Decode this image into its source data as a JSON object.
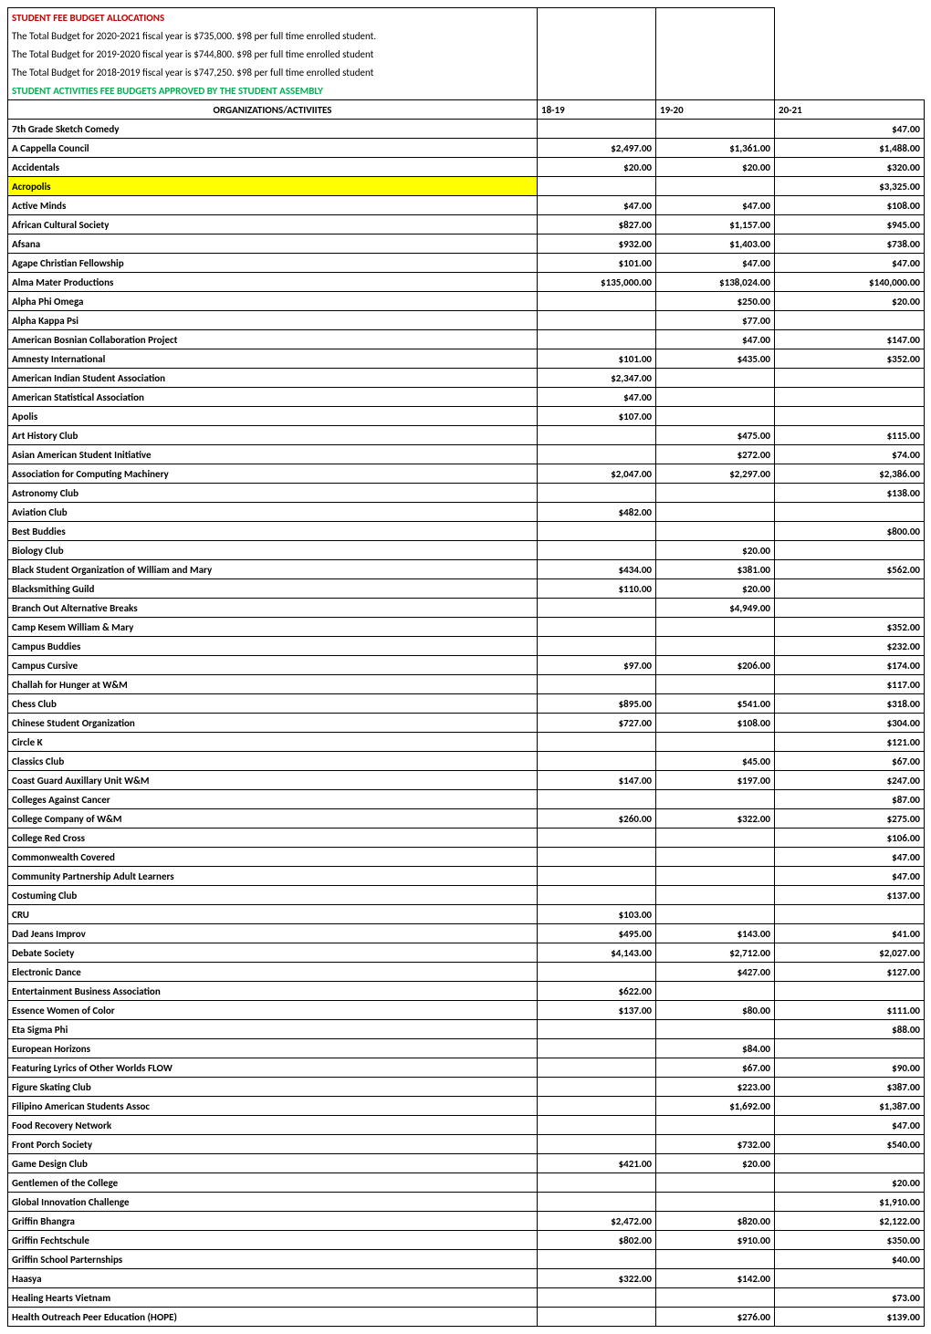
{
  "header": {
    "title": "STUDENT FEE BUDGET ALLOCATIONS",
    "line1": "The Total Budget for 2020-2021 fiscal year is $735,000. $98 per full time enrolled student.",
    "line2": "The Total Budget for 2019-2020 fiscal year is $744,800. $98 per full time enrolled student",
    "line3": "The Total Budget for 2018-2019 fiscal year is $747,250. $98 per full time enrolled student",
    "green_line": "STUDENT ACTIVITIES FEE BUDGETS APPROVED BY THE STUDENT ASSEMBLY"
  },
  "columns": {
    "org": "ORGANIZATIONS/ACTIVIITES",
    "y1": "18-19",
    "y2": "19-20",
    "y3": "20-21"
  },
  "colors": {
    "red": "#c00000",
    "green": "#00b050",
    "yellow": "#ffff00",
    "border": "#000000",
    "bg": "#ffffff"
  },
  "rows": [
    {
      "name": "7th Grade Sketch Comedy",
      "y1": "",
      "y2": "",
      "y3": "$47.00"
    },
    {
      "name": "A Cappella Council",
      "y1": "$2,497.00",
      "y2": "$1,361.00",
      "y3": "$1,488.00"
    },
    {
      "name": "Accidentals",
      "y1": "$20.00",
      "y2": "$20.00",
      "y3": "$320.00"
    },
    {
      "name": "Acropolis",
      "y1": "",
      "y2": "",
      "y3": "$3,325.00",
      "highlight": true
    },
    {
      "name": "Active Minds",
      "y1": "$47.00",
      "y2": "$47.00",
      "y3": "$108.00"
    },
    {
      "name": "African Cultural Society",
      "y1": "$827.00",
      "y2": "$1,157.00",
      "y3": "$945.00"
    },
    {
      "name": "Afsana",
      "y1": "$932.00",
      "y2": "$1,403.00",
      "y3": "$738.00"
    },
    {
      "name": "Agape Christian Fellowship",
      "y1": "$101.00",
      "y2": "$47.00",
      "y3": "$47.00"
    },
    {
      "name": "Alma Mater Productions",
      "y1": "$135,000.00",
      "y2": "$138,024.00",
      "y3": "$140,000.00"
    },
    {
      "name": "Alpha Phi Omega",
      "y1": "",
      "y2": "$250.00",
      "y3": "$20.00"
    },
    {
      "name": "Alpha Kappa Psi",
      "y1": "",
      "y2": "$77.00",
      "y3": ""
    },
    {
      "name": "American Bosnian Collaboration Project",
      "y1": "",
      "y2": "$47.00",
      "y3": "$147.00"
    },
    {
      "name": "Amnesty International",
      "y1": "$101.00",
      "y2": "$435.00",
      "y3": "$352.00"
    },
    {
      "name": "American Indian Student Association",
      "y1": "$2,347.00",
      "y2": "",
      "y3": ""
    },
    {
      "name": "American Statistical Association",
      "y1": "$47.00",
      "y2": "",
      "y3": ""
    },
    {
      "name": "Apolis",
      "y1": "$107.00",
      "y2": "",
      "y3": ""
    },
    {
      "name": "Art History Club",
      "y1": "",
      "y2": "$475.00",
      "y3": "$115.00"
    },
    {
      "name": "Asian American Student Initiative",
      "y1": "",
      "y2": "$272.00",
      "y3": "$74.00"
    },
    {
      "name": "Association for Computing Machinery",
      "y1": "$2,047.00",
      "y2": "$2,297.00",
      "y3": "$2,386.00"
    },
    {
      "name": "Astronomy Club",
      "y1": "",
      "y2": "",
      "y3": "$138.00"
    },
    {
      "name": "Aviation Club",
      "y1": "$482.00",
      "y2": "",
      "y3": ""
    },
    {
      "name": "Best Buddies",
      "y1": "",
      "y2": "",
      "y3": "$800.00"
    },
    {
      "name": "Biology Club",
      "y1": "",
      "y2": "$20.00",
      "y3": ""
    },
    {
      "name": "Black Student Organization of William and Mary",
      "y1": "$434.00",
      "y2": "$381.00",
      "y3": "$562.00"
    },
    {
      "name": "Blacksmithing Guild",
      "y1": "$110.00",
      "y2": "$20.00",
      "y3": ""
    },
    {
      "name": "Branch Out Alternative Breaks",
      "y1": "",
      "y2": "$4,949.00",
      "y3": ""
    },
    {
      "name": "Camp Kesem William & Mary",
      "y1": "",
      "y2": "",
      "y3": "$352.00"
    },
    {
      "name": "Campus Buddies",
      "y1": "",
      "y2": "",
      "y3": "$232.00"
    },
    {
      "name": "Campus Cursive",
      "y1": "$97.00",
      "y2": "$206.00",
      "y3": "$174.00"
    },
    {
      "name": "Challah for Hunger at W&M",
      "y1": "",
      "y2": "",
      "y3": "$117.00"
    },
    {
      "name": "Chess Club",
      "y1": "$895.00",
      "y2": "$541.00",
      "y3": "$318.00"
    },
    {
      "name": "Chinese Student Organization",
      "y1": "$727.00",
      "y2": "$108.00",
      "y3": "$304.00"
    },
    {
      "name": "Circle K",
      "y1": "",
      "y2": "",
      "y3": "$121.00"
    },
    {
      "name": "Classics Club",
      "y1": "",
      "y2": "$45.00",
      "y3": "$67.00"
    },
    {
      "name": "Coast Guard Auxillary Unit W&M",
      "y1": "$147.00",
      "y2": "$197.00",
      "y3": "$247.00"
    },
    {
      "name": "Colleges Against Cancer",
      "y1": "",
      "y2": "",
      "y3": "$87.00"
    },
    {
      "name": "College Company of W&M",
      "y1": "$260.00",
      "y2": "$322.00",
      "y3": "$275.00"
    },
    {
      "name": "College Red Cross",
      "y1": "",
      "y2": "",
      "y3": "$106.00"
    },
    {
      "name": "Commonwealth Covered",
      "y1": "",
      "y2": "",
      "y3": "$47.00"
    },
    {
      "name": "Community Partnership Adult Learners",
      "y1": "",
      "y2": "",
      "y3": "$47.00"
    },
    {
      "name": "Costuming Club",
      "y1": "",
      "y2": "",
      "y3": "$137.00"
    },
    {
      "name": "CRU",
      "y1": "$103.00",
      "y2": "",
      "y3": ""
    },
    {
      "name": "Dad Jeans Improv",
      "y1": "$495.00",
      "y2": "$143.00",
      "y3": "$41.00"
    },
    {
      "name": "Debate Society",
      "y1": "$4,143.00",
      "y2": "$2,712.00",
      "y3": "$2,027.00"
    },
    {
      "name": "Electronic Dance",
      "y1": "",
      "y2": "$427.00",
      "y3": "$127.00"
    },
    {
      "name": "Entertainment Business Association",
      "y1": "$622.00",
      "y2": "",
      "y3": ""
    },
    {
      "name": "Essence Women of Color",
      "y1": "$137.00",
      "y2": "$80.00",
      "y3": "$111.00"
    },
    {
      "name": "Eta Sigma Phi",
      "y1": "",
      "y2": "",
      "y3": "$88.00"
    },
    {
      "name": "European Horizons",
      "y1": "",
      "y2": "$84.00",
      "y3": ""
    },
    {
      "name": "Featuring Lyrics of Other Worlds FLOW",
      "y1": "",
      "y2": "$67.00",
      "y3": "$90.00"
    },
    {
      "name": "Figure Skating Club",
      "y1": "",
      "y2": "$223.00",
      "y3": "$387.00"
    },
    {
      "name": "Filipino American Students Assoc",
      "y1": "",
      "y2": "$1,692.00",
      "y3": "$1,387.00"
    },
    {
      "name": "Food Recovery Network",
      "y1": "",
      "y2": "",
      "y3": "$47.00"
    },
    {
      "name": "Front Porch Society",
      "y1": "",
      "y2": "$732.00",
      "y3": "$540.00"
    },
    {
      "name": "Game Design Club",
      "y1": "$421.00",
      "y2": "$20.00",
      "y3": ""
    },
    {
      "name": "Gentlemen of the College",
      "y1": "",
      "y2": "",
      "y3": "$20.00"
    },
    {
      "name": "Global Innovation Challenge",
      "y1": "",
      "y2": "",
      "y3": "$1,910.00"
    },
    {
      "name": "Griffin Bhangra",
      "y1": "$2,472.00",
      "y2": "$820.00",
      "y3": "$2,122.00"
    },
    {
      "name": "Griffin Fechtschule",
      "y1": "$802.00",
      "y2": "$910.00",
      "y3": "$350.00"
    },
    {
      "name": "Griffin School Parternships",
      "y1": "",
      "y2": "",
      "y3": "$40.00"
    },
    {
      "name": "Haasya",
      "y1": "$322.00",
      "y2": "$142.00",
      "y3": ""
    },
    {
      "name": "Healing Hearts Vietnam",
      "y1": "",
      "y2": "",
      "y3": "$73.00"
    },
    {
      "name": "Health Outreach Peer Education (HOPE)",
      "y1": "",
      "y2": "$276.00",
      "y3": "$139.00"
    }
  ]
}
